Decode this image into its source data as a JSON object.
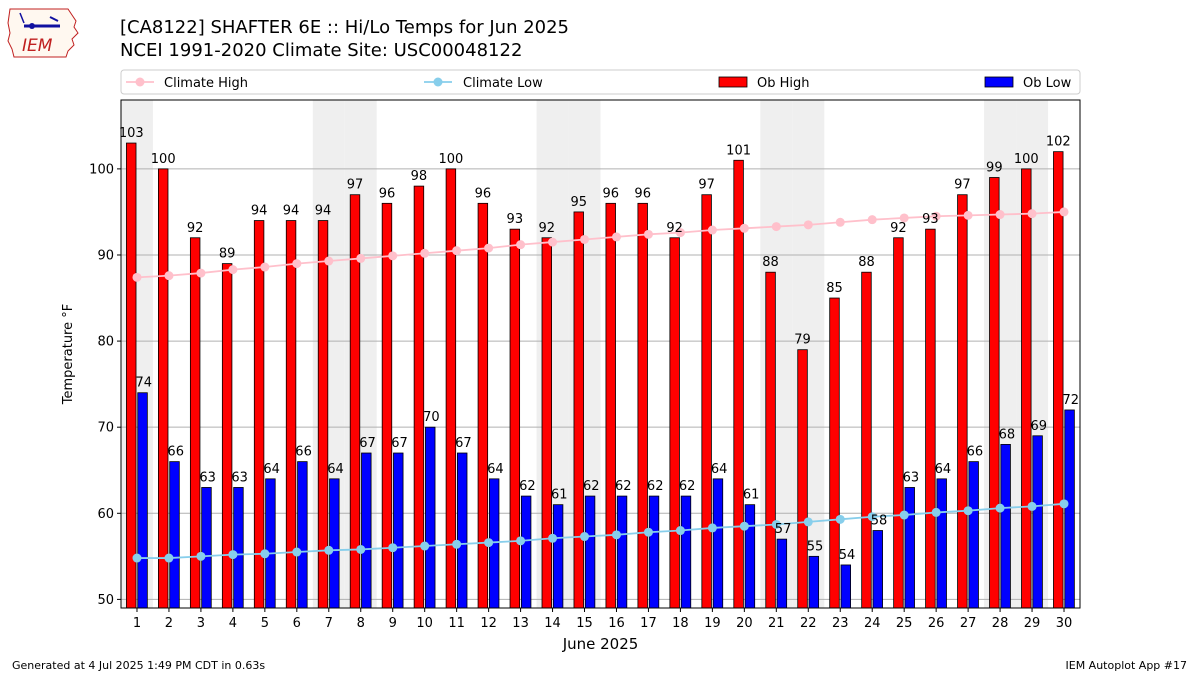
{
  "header": {
    "title_line1": "[CA8122] SHAFTER 6E :: Hi/Lo Temps for Jun 2025",
    "title_line2": "NCEI 1991-2020 Climate Site: USC00048122",
    "logo_text": "IEM"
  },
  "footer": {
    "generated": "Generated at 4 Jul 2025 1:49 PM CDT in 0.63s",
    "app": "IEM Autoplot App #17"
  },
  "colors": {
    "ob_high": "#ff0000",
    "ob_low": "#0000ff",
    "climate_high": "#ffc0cb",
    "climate_low": "#87ceeb",
    "weekend_band": "#efefef",
    "grid": "#b0b0b0"
  },
  "chart_data": {
    "type": "bar",
    "xlabel": "June 2025",
    "ylabel": "Temperature °F",
    "ylim": [
      49,
      108
    ],
    "yticks": [
      50,
      60,
      70,
      80,
      90,
      100
    ],
    "grid": "horizontal",
    "legend_position": "top",
    "categories": [
      "1",
      "2",
      "3",
      "4",
      "5",
      "6",
      "7",
      "8",
      "9",
      "10",
      "11",
      "12",
      "13",
      "14",
      "15",
      "16",
      "17",
      "18",
      "19",
      "20",
      "21",
      "22",
      "23",
      "24",
      "25",
      "26",
      "27",
      "28",
      "29",
      "30"
    ],
    "shaded_days": [
      1,
      7,
      8,
      14,
      15,
      21,
      22,
      28,
      29
    ],
    "series": [
      {
        "name": "Climate High",
        "kind": "line",
        "values": [
          87.4,
          87.6,
          87.9,
          88.3,
          88.6,
          89.0,
          89.3,
          89.6,
          89.9,
          90.2,
          90.5,
          90.8,
          91.2,
          91.5,
          91.8,
          92.1,
          92.4,
          92.6,
          92.9,
          93.1,
          93.3,
          93.5,
          93.8,
          94.1,
          94.3,
          94.5,
          94.6,
          94.7,
          94.8,
          95.0
        ]
      },
      {
        "name": "Climate Low",
        "kind": "line",
        "values": [
          54.8,
          54.8,
          55.0,
          55.2,
          55.3,
          55.5,
          55.7,
          55.8,
          56.0,
          56.2,
          56.4,
          56.6,
          56.8,
          57.1,
          57.3,
          57.5,
          57.8,
          58.0,
          58.3,
          58.5,
          58.7,
          59.0,
          59.3,
          59.6,
          59.8,
          60.1,
          60.3,
          60.6,
          60.8,
          61.1
        ]
      },
      {
        "name": "Ob High",
        "kind": "bar",
        "values": [
          103,
          100,
          92,
          89,
          94,
          94,
          94,
          97,
          96,
          98,
          100,
          96,
          93,
          92,
          95,
          96,
          96,
          92,
          97,
          101,
          88,
          79,
          85,
          88,
          92,
          93,
          97,
          99,
          100,
          102
        ]
      },
      {
        "name": "Ob Low",
        "kind": "bar",
        "values": [
          74,
          66,
          63,
          63,
          64,
          66,
          64,
          67,
          67,
          70,
          67,
          64,
          62,
          61,
          62,
          62,
          62,
          62,
          64,
          61,
          57,
          55,
          54,
          58,
          63,
          64,
          66,
          68,
          69,
          72
        ]
      }
    ]
  }
}
